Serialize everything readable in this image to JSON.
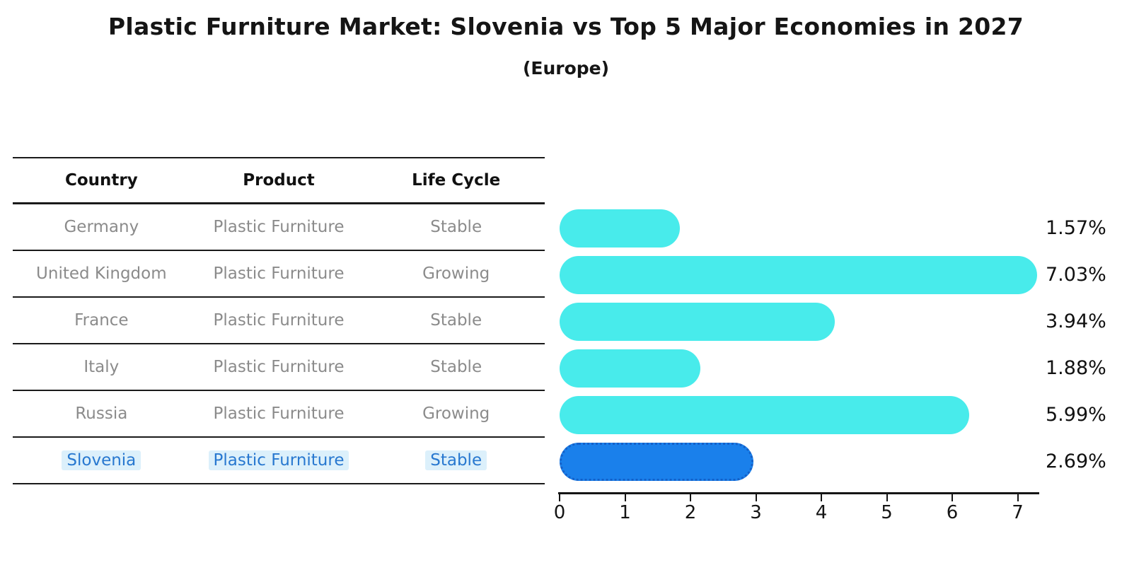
{
  "title": "Plastic Furniture Market: Slovenia vs Top 5 Major Economies in 2027",
  "subtitle": "(Europe)",
  "table": {
    "headers": [
      "Country",
      "Product",
      "Life Cycle"
    ],
    "rows": [
      {
        "country": "Germany",
        "product": "Plastic Furniture",
        "life_cycle": "Stable",
        "highlighted": false
      },
      {
        "country": "United Kingdom",
        "product": "Plastic Furniture",
        "life_cycle": "Growing",
        "highlighted": false
      },
      {
        "country": "France",
        "product": "Plastic Furniture",
        "life_cycle": "Stable",
        "highlighted": false
      },
      {
        "country": "Italy",
        "product": "Plastic Furniture",
        "life_cycle": "Stable",
        "highlighted": false
      },
      {
        "country": "Russia",
        "product": "Plastic Furniture",
        "life_cycle": "Growing",
        "highlighted": false
      },
      {
        "country": "Slovenia",
        "product": "Plastic Furniture",
        "life_cycle": "Stable",
        "highlighted": true
      }
    ]
  },
  "chart_data": {
    "type": "bar",
    "orientation": "horizontal",
    "title": "Plastic Furniture Market: Slovenia vs Top 5 Major Economies in 2027",
    "subtitle": "(Europe)",
    "categories": [
      "Germany",
      "United Kingdom",
      "France",
      "Italy",
      "Russia",
      "Slovenia"
    ],
    "values": [
      1.57,
      7.03,
      3.94,
      1.88,
      5.99,
      2.69
    ],
    "value_labels": [
      "1.57%",
      "7.03%",
      "3.94%",
      "1.88%",
      "5.99%",
      "2.69%"
    ],
    "x_ticks": [
      0,
      1,
      2,
      3,
      4,
      5,
      6,
      7
    ],
    "xlim": [
      0,
      7.35
    ],
    "highlight_index": 5,
    "grid": false,
    "legend": false,
    "bar_color": "#48ebeb",
    "highlight_bar_color": "#1a80eb",
    "highlight_border_color": "#1460c8",
    "highlight_text_color": "#2878d0"
  }
}
